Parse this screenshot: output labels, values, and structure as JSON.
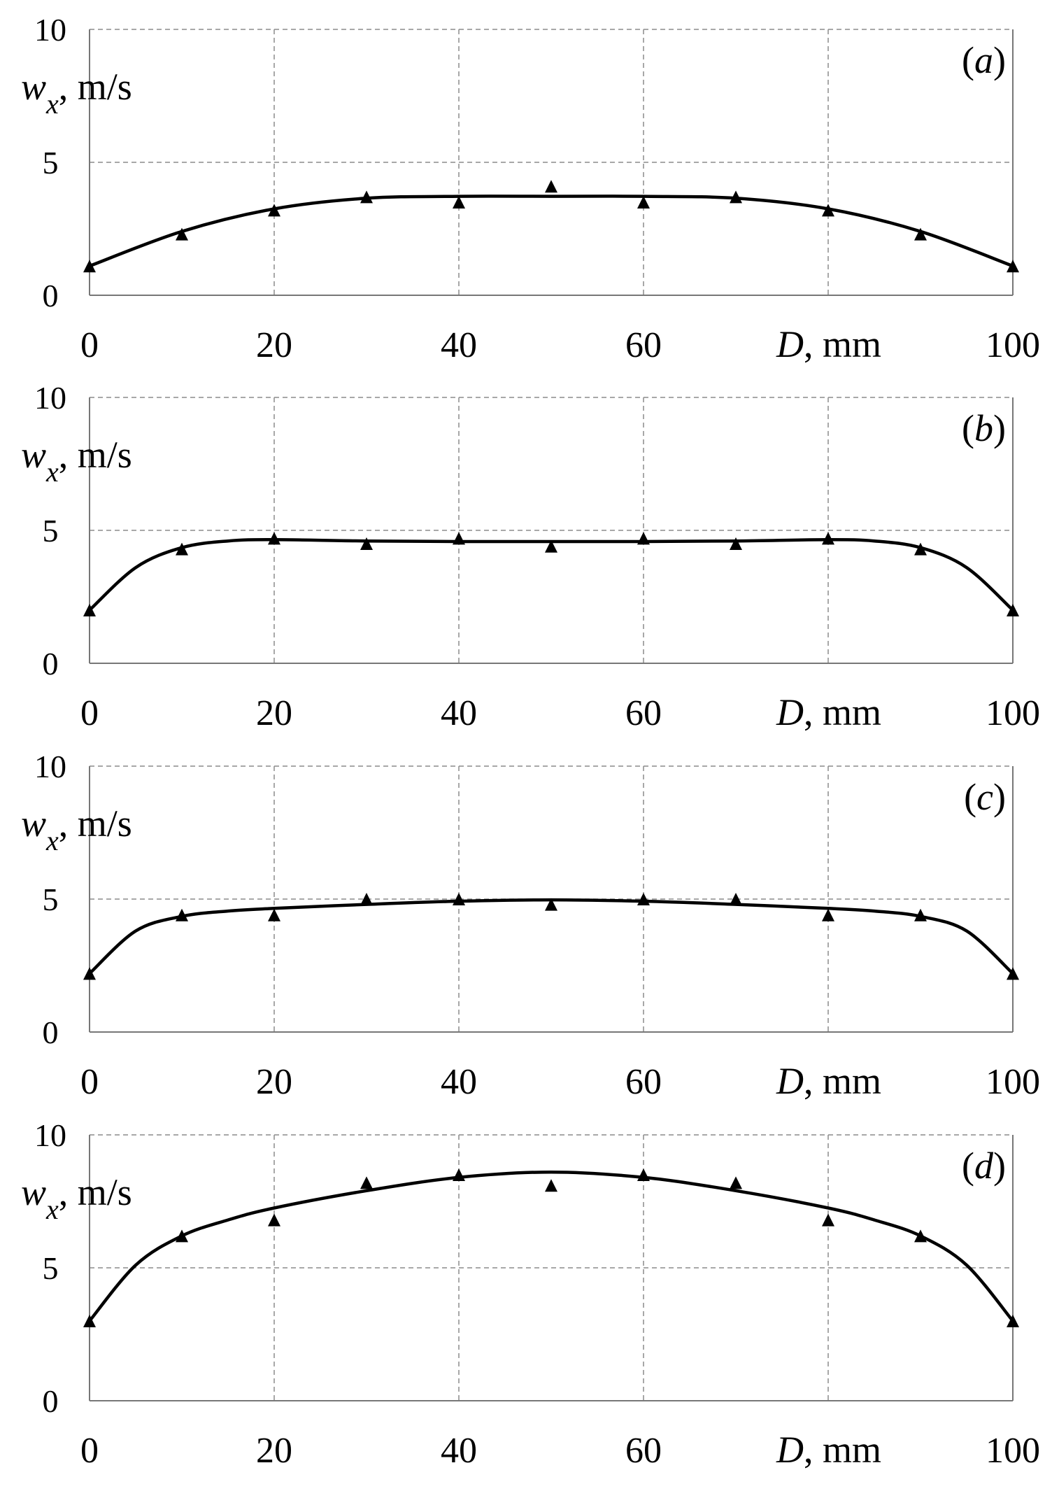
{
  "chart_data": [
    {
      "type": "scatter",
      "panel_label": "a",
      "ylabel": "w",
      "ylabel_sub": "x",
      "ylabel_unit": ", m/s",
      "xlabel": "D",
      "xlabel_unit": ", mm",
      "xlim": [
        0,
        100
      ],
      "ylim": [
        0,
        10
      ],
      "x_ticks": [
        "0",
        "20",
        "40",
        "60",
        "100"
      ],
      "y_ticks": [
        "0",
        "5",
        "10"
      ],
      "grid": true,
      "markers": {
        "x": [
          0,
          10,
          20,
          30,
          40,
          50,
          60,
          70,
          80,
          90,
          100
        ],
        "y": [
          1.1,
          2.3,
          3.2,
          3.7,
          3.5,
          4.1,
          3.5,
          3.7,
          3.2,
          2.3,
          1.1
        ]
      },
      "curve": {
        "x": [
          0,
          10,
          20,
          30,
          40,
          50,
          60,
          70,
          80,
          90,
          100
        ],
        "y": [
          1.1,
          2.4,
          3.25,
          3.65,
          3.72,
          3.72,
          3.72,
          3.65,
          3.25,
          2.4,
          1.1
        ]
      }
    },
    {
      "type": "scatter",
      "panel_label": "b",
      "ylabel": "w",
      "ylabel_sub": "x",
      "ylabel_unit": ", m/s",
      "xlabel": "D",
      "xlabel_unit": ", mm",
      "xlim": [
        0,
        100
      ],
      "ylim": [
        0,
        10
      ],
      "x_ticks": [
        "0",
        "20",
        "40",
        "60",
        "100"
      ],
      "y_ticks": [
        "0",
        "5",
        "10"
      ],
      "grid": true,
      "markers": {
        "x": [
          0,
          10,
          20,
          30,
          40,
          50,
          60,
          70,
          80,
          90,
          100
        ],
        "y": [
          2.0,
          4.3,
          4.7,
          4.5,
          4.7,
          4.4,
          4.7,
          4.5,
          4.7,
          4.3,
          2.0
        ]
      },
      "curve": {
        "x": [
          0,
          5,
          10,
          15,
          20,
          30,
          40,
          50,
          60,
          70,
          80,
          85,
          90,
          95,
          100
        ],
        "y": [
          2.0,
          3.6,
          4.35,
          4.6,
          4.65,
          4.6,
          4.58,
          4.58,
          4.58,
          4.6,
          4.65,
          4.6,
          4.35,
          3.6,
          2.0
        ]
      }
    },
    {
      "type": "scatter",
      "panel_label": "c",
      "ylabel": "w",
      "ylabel_sub": "x",
      "ylabel_unit": ", m/s",
      "xlabel": "D",
      "xlabel_unit": ", mm",
      "xlim": [
        0,
        100
      ],
      "ylim": [
        0,
        10
      ],
      "x_ticks": [
        "0",
        "20",
        "40",
        "60",
        "100"
      ],
      "y_ticks": [
        "0",
        "5",
        "10"
      ],
      "grid": true,
      "markers": {
        "x": [
          0,
          10,
          20,
          30,
          40,
          50,
          60,
          70,
          80,
          90,
          100
        ],
        "y": [
          2.2,
          4.4,
          4.4,
          5.0,
          5.0,
          4.8,
          5.0,
          5.0,
          4.4,
          4.4,
          2.2
        ]
      },
      "curve": {
        "x": [
          0,
          5,
          10,
          15,
          20,
          30,
          40,
          50,
          60,
          70,
          80,
          85,
          90,
          95,
          100
        ],
        "y": [
          2.2,
          3.8,
          4.35,
          4.55,
          4.65,
          4.8,
          4.92,
          4.97,
          4.92,
          4.8,
          4.65,
          4.55,
          4.35,
          3.8,
          2.2
        ]
      }
    },
    {
      "type": "scatter",
      "panel_label": "d",
      "ylabel": "w",
      "ylabel_sub": "x",
      "ylabel_unit": ", m/s",
      "xlabel": "D",
      "xlabel_unit": ", mm",
      "xlim": [
        0,
        100
      ],
      "ylim": [
        0,
        10
      ],
      "x_ticks": [
        "0",
        "20",
        "40",
        "60",
        "100"
      ],
      "y_ticks": [
        "0",
        "5",
        "10"
      ],
      "grid": true,
      "markers": {
        "x": [
          0,
          10,
          20,
          30,
          40,
          50,
          60,
          70,
          80,
          90,
          100
        ],
        "y": [
          3.0,
          6.2,
          6.8,
          8.2,
          8.5,
          8.1,
          8.5,
          8.2,
          6.8,
          6.2,
          3.0
        ]
      },
      "curve": {
        "x": [
          0,
          5,
          10,
          15,
          20,
          30,
          40,
          50,
          60,
          70,
          80,
          85,
          90,
          95,
          100
        ],
        "y": [
          3.0,
          5.1,
          6.2,
          6.8,
          7.25,
          7.9,
          8.4,
          8.6,
          8.4,
          7.9,
          7.25,
          6.8,
          6.2,
          5.1,
          3.0
        ]
      }
    }
  ]
}
